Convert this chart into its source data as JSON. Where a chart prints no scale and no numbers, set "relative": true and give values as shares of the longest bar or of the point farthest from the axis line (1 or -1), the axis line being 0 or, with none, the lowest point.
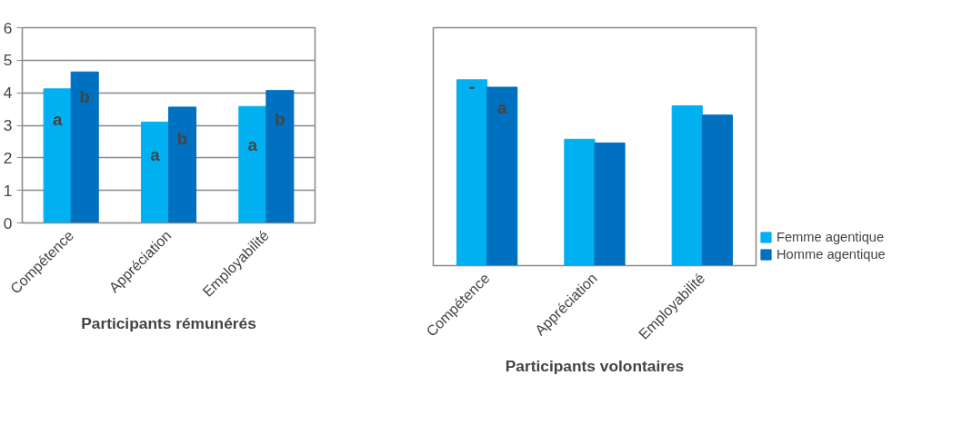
{
  "chart_data": [
    {
      "type": "bar",
      "title": "Participants rémunérés",
      "categories": [
        "Compétence",
        "Appréciation",
        "Employabilité"
      ],
      "series": [
        {
          "color": "#00b0f0",
          "values": [
            4.12,
            3.1,
            3.58
          ]
        },
        {
          "color": "#0070c0",
          "values": [
            4.64,
            3.56,
            4.07
          ]
        }
      ],
      "ylim": [
        0,
        6
      ],
      "yticks": [
        0,
        1,
        2,
        3,
        4,
        5,
        6
      ],
      "grid": "y",
      "legend": false,
      "annotations": [
        {
          "text": "a",
          "x": "Compétence",
          "y": 2.9
        },
        {
          "text": "b",
          "x": "Compétence",
          "y": 3.6
        },
        {
          "text": "a",
          "x": "Appréciation",
          "y": 1.8
        },
        {
          "text": "b",
          "x": "Appréciation",
          "y": 2.3
        },
        {
          "text": "a",
          "x": "Employabilité",
          "y": 2.1
        },
        {
          "text": "b",
          "x": "Employabilité",
          "y": 2.9
        }
      ]
    },
    {
      "type": "bar",
      "title": "Participants volontaires",
      "categories": [
        "Compétence",
        "Appréciation",
        "Employabilité"
      ],
      "relative": true,
      "series": [
        {
          "name": "Femme agentique",
          "color": "#00b0f0",
          "values": [
            1,
            0.68,
            0.86
          ]
        },
        {
          "name": "Homme agentique",
          "color": "#0070c0",
          "values": [
            0.96,
            0.66,
            0.81
          ]
        }
      ],
      "legend": "right",
      "annotations": [
        {
          "text": "-",
          "x": "Compétence",
          "y": 0.93
        },
        {
          "text": "a",
          "x": "Compétence",
          "y": 0.8
        }
      ]
    }
  ]
}
